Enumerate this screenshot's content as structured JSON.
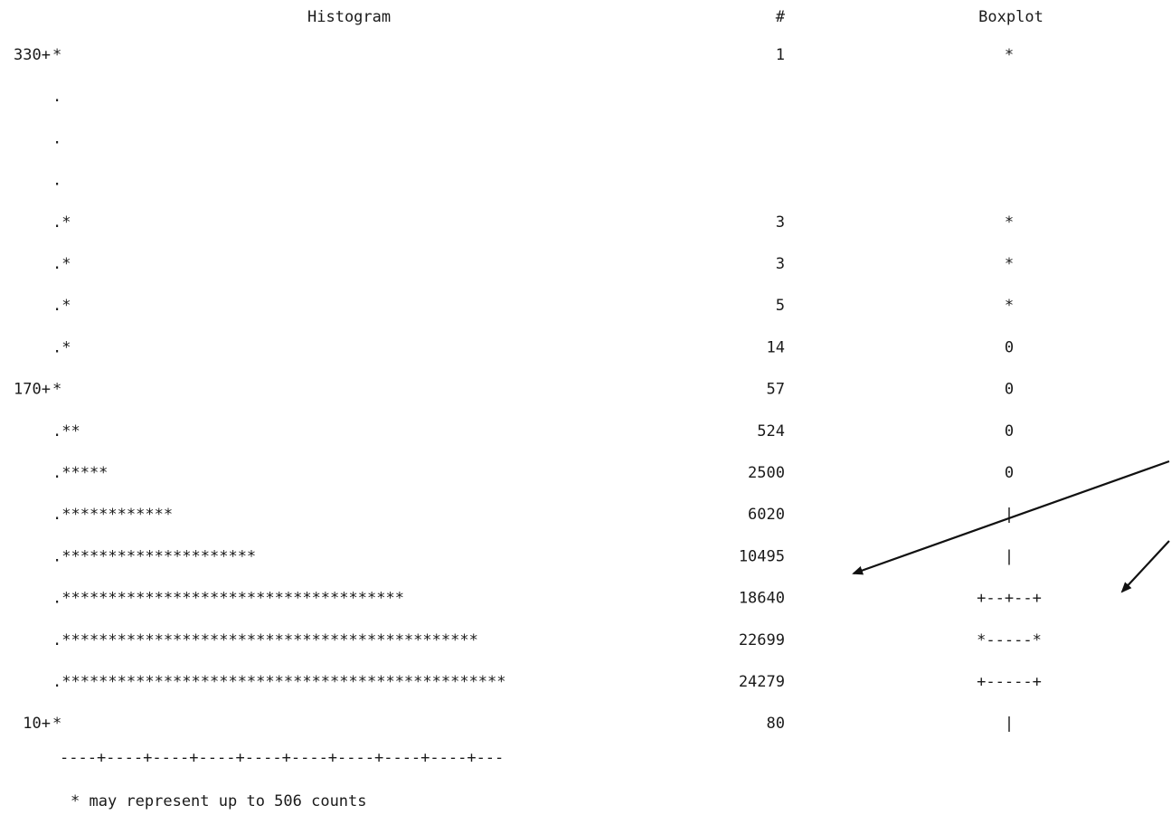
{
  "chart_data": {
    "type": "bar",
    "title": "Histogram",
    "count_header": "#",
    "boxplot_header": "Boxplot",
    "scale_ticks": "----+----+----+----+----+----+----+----+----+---",
    "note": "* may represent up to 506 counts",
    "rows": [
      {
        "label": "330+",
        "bar": "*",
        "count": "1",
        "box": "*"
      },
      {
        "label": "",
        "bar": ".",
        "count": "",
        "box": ""
      },
      {
        "label": "",
        "bar": ".",
        "count": "",
        "box": ""
      },
      {
        "label": "",
        "bar": ".",
        "count": "",
        "box": ""
      },
      {
        "label": "",
        "bar": ".*",
        "count": "3",
        "box": "*"
      },
      {
        "label": "",
        "bar": ".*",
        "count": "3",
        "box": "*"
      },
      {
        "label": "",
        "bar": ".*",
        "count": "5",
        "box": "*"
      },
      {
        "label": "",
        "bar": ".*",
        "count": "14",
        "box": "0"
      },
      {
        "label": "170+",
        "bar": "*",
        "count": "57",
        "box": "0"
      },
      {
        "label": "",
        "bar": ".**",
        "count": "524",
        "box": "0"
      },
      {
        "label": "",
        "bar": ".*****",
        "count": "2500",
        "box": "0"
      },
      {
        "label": "",
        "bar": ".************",
        "count": "6020",
        "box": "|"
      },
      {
        "label": "",
        "bar": ".*********************",
        "count": "10495",
        "box": "|"
      },
      {
        "label": "",
        "bar": ".*************************************",
        "count": "18640",
        "box": "+--+--+"
      },
      {
        "label": "",
        "bar": ".*********************************************",
        "count": "22699",
        "box": "*-----*"
      },
      {
        "label": "",
        "bar": ".************************************************",
        "count": "24279",
        "box": "+-----+"
      },
      {
        "label": "10+",
        "bar": "*",
        "count": "80",
        "box": "|"
      }
    ]
  }
}
